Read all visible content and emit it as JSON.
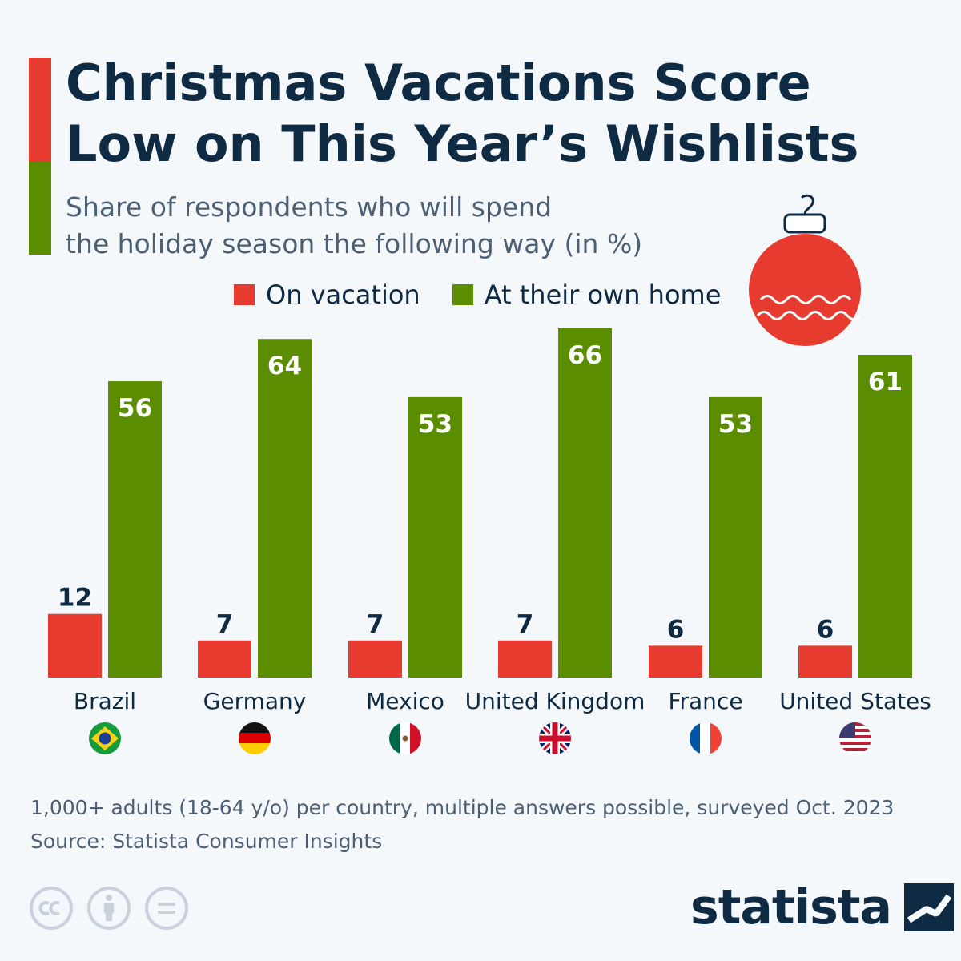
{
  "header": {
    "title_line1": "Christmas Vacations Score",
    "title_line2": "Low on This Year’s Wishlists",
    "subtitle_line1": "Share of respondents who will spend",
    "subtitle_line2": "the holiday season the following way (in %)"
  },
  "colors": {
    "vacation": "#e63b2e",
    "home": "#5a8e00",
    "text_dark": "#0f2a43",
    "label_light": "#ffffff"
  },
  "icons": {
    "ornament": "christmas-ornament-icon",
    "flags": [
      "brazil-flag-icon",
      "germany-flag-icon",
      "mexico-flag-icon",
      "uk-flag-icon",
      "france-flag-icon",
      "usa-flag-icon"
    ],
    "license": [
      "creative-commons-icon",
      "attribution-icon",
      "no-derivatives-icon"
    ],
    "logo": "statista-logo-icon"
  },
  "chart_data": {
    "type": "bar",
    "categories": [
      "Brazil",
      "Germany",
      "Mexico",
      "United Kingdom",
      "France",
      "United States"
    ],
    "series": [
      {
        "name": "On vacation",
        "values": [
          12,
          7,
          7,
          7,
          6,
          6
        ]
      },
      {
        "name": "At their own home",
        "values": [
          56,
          64,
          53,
          66,
          53,
          61
        ]
      }
    ],
    "title": "Christmas Vacations Score Low on This Year’s Wishlists",
    "ylim": [
      0,
      66
    ],
    "grid": false,
    "legend": "top",
    "data_labels": true
  },
  "footer": {
    "note": "1,000+ adults (18-64 y/o) per country, multiple answers possible, surveyed Oct. 2023",
    "source": "Source: Statista Consumer Insights",
    "brand": "statista"
  }
}
